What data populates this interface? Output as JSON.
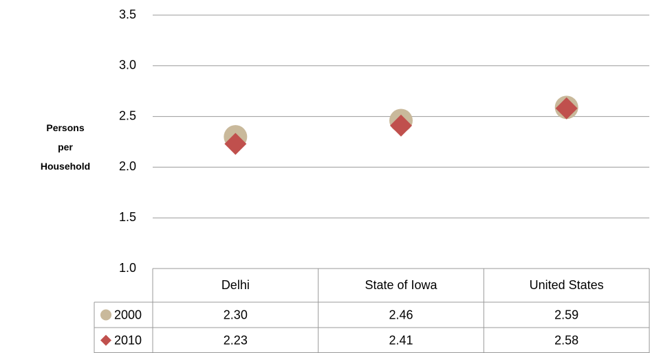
{
  "chart_data": {
    "type": "scatter",
    "ylabel": "Persons per Household",
    "categories": [
      "Delhi",
      "State of Iowa",
      "United States"
    ],
    "series": [
      {
        "name": "2000",
        "color": "#c9b99b",
        "marker": "circle",
        "values": [
          2.3,
          2.46,
          2.59
        ],
        "value_labels": [
          "2.30",
          "2.46",
          "2.59"
        ]
      },
      {
        "name": "2010",
        "color": "#c0504d",
        "marker": "diamond",
        "values": [
          2.23,
          2.41,
          2.58
        ],
        "value_labels": [
          "2.23",
          "2.41",
          "2.58"
        ]
      }
    ],
    "ylim": [
      1,
      3.5
    ],
    "yticks": [
      {
        "value": 1,
        "label": "1.0"
      },
      {
        "value": 1.5,
        "label": "1.5"
      },
      {
        "value": 2,
        "label": "2.0"
      },
      {
        "value": 2.5,
        "label": "2.5"
      },
      {
        "value": 3,
        "label": "3.0"
      },
      {
        "value": 3.5,
        "label": "3.5"
      }
    ],
    "grid": true,
    "data_table": true
  }
}
